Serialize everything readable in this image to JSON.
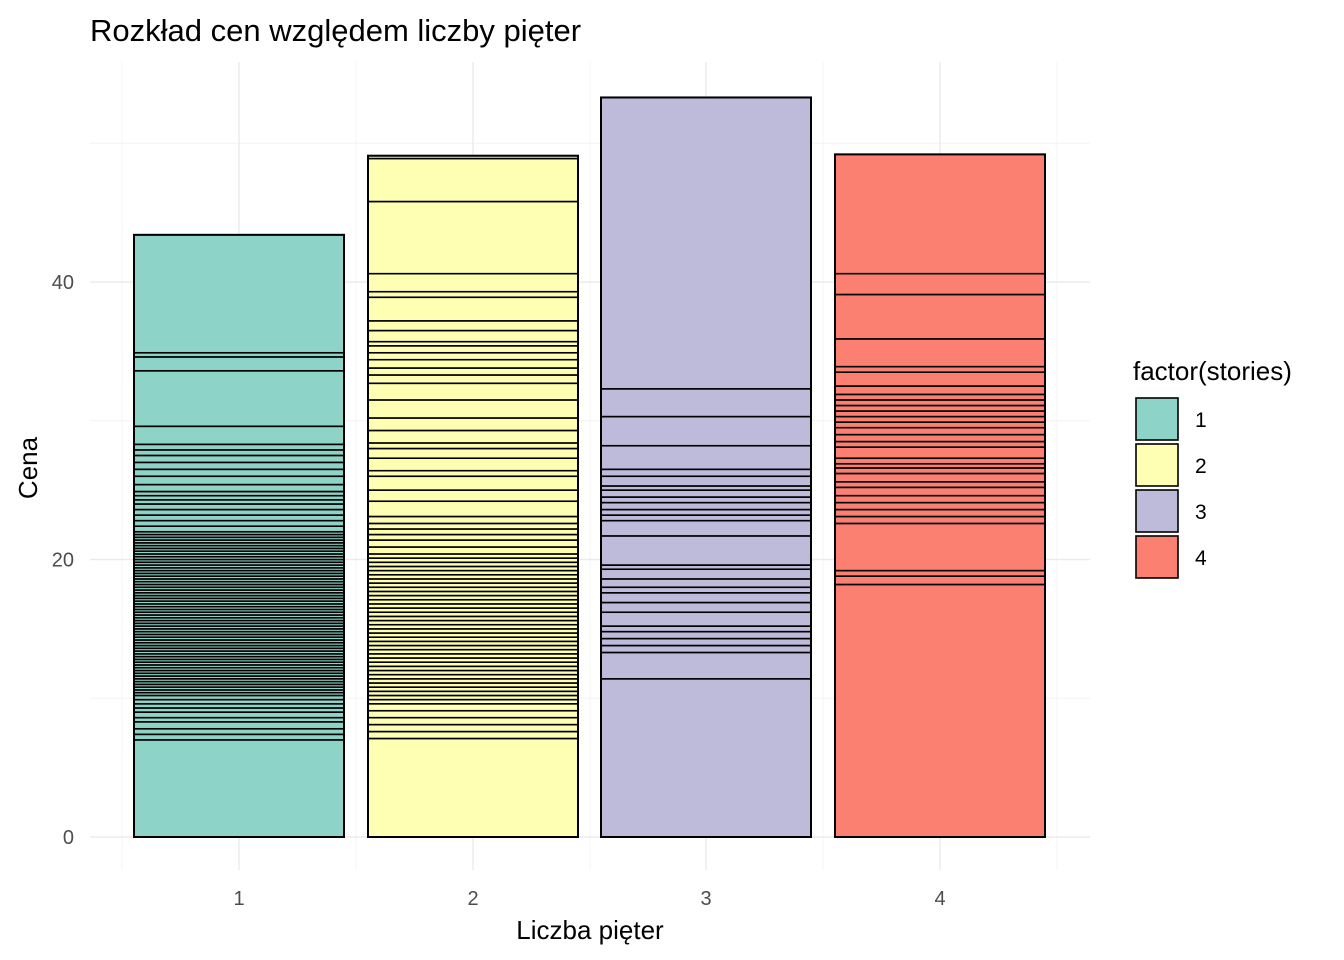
{
  "chart_data": {
    "type": "bar",
    "stacked": true,
    "title": "Rozkład cen względem liczby pięter",
    "xlabel": "Liczba pięter",
    "ylabel": "Cena",
    "categories": [
      "1",
      "2",
      "3",
      "4"
    ],
    "ylim": [
      0,
      55
    ],
    "yticks": [
      0,
      20,
      40
    ],
    "grid": true,
    "legend": {
      "title": "factor(stories)",
      "position": "right",
      "entries": [
        {
          "label": "1",
          "color": "#8ED3C7"
        },
        {
          "label": "2",
          "color": "#FFFFB3"
        },
        {
          "label": "3",
          "color": "#BEBADA"
        },
        {
          "label": "4",
          "color": "#FB8072"
        }
      ]
    },
    "series": [
      {
        "category": "1",
        "color": "#8ED3C7",
        "total": 43.4,
        "segment_boundaries": [
          7.0,
          7.4,
          7.8,
          8.3,
          8.6,
          9.0,
          9.3,
          9.6,
          9.9,
          10.2,
          10.4,
          10.6,
          10.8,
          11.0,
          11.2,
          11.4,
          11.6,
          11.8,
          12.0,
          12.2,
          12.4,
          12.6,
          12.8,
          13.0,
          13.2,
          13.4,
          13.6,
          13.8,
          14.0,
          14.2,
          14.4,
          14.6,
          14.8,
          15.0,
          15.2,
          15.4,
          15.6,
          15.8,
          16.0,
          16.2,
          16.4,
          16.6,
          16.8,
          17.0,
          17.2,
          17.4,
          17.6,
          17.8,
          18.0,
          18.2,
          18.4,
          18.6,
          18.8,
          19.0,
          19.2,
          19.4,
          19.6,
          19.8,
          20.0,
          20.2,
          20.4,
          20.6,
          20.8,
          21.0,
          21.2,
          21.4,
          21.6,
          21.8,
          22.0,
          22.4,
          22.8,
          23.2,
          23.6,
          24.0,
          24.3,
          24.6,
          24.9,
          25.4,
          26.0,
          26.5,
          27.0,
          27.5,
          27.9,
          28.3,
          29.6,
          33.6,
          34.6,
          34.9,
          43.4
        ]
      },
      {
        "category": "2",
        "color": "#FFFFB3",
        "total": 49.1,
        "segment_boundaries": [
          7.1,
          7.6,
          8.1,
          8.6,
          9.1,
          9.6,
          9.9,
          10.2,
          10.5,
          10.8,
          11.1,
          11.4,
          11.7,
          12.0,
          12.3,
          12.6,
          12.9,
          13.2,
          13.5,
          13.8,
          14.1,
          14.4,
          14.7,
          15.0,
          15.3,
          15.6,
          15.9,
          16.2,
          16.5,
          16.8,
          17.1,
          17.4,
          17.7,
          18.0,
          18.3,
          18.6,
          18.9,
          19.2,
          19.5,
          19.8,
          20.1,
          20.4,
          20.9,
          21.4,
          21.8,
          22.2,
          22.6,
          23.1,
          24.2,
          25.0,
          26.0,
          26.4,
          27.3,
          28.0,
          28.4,
          29.3,
          30.2,
          31.5,
          32.7,
          33.3,
          33.8,
          34.4,
          34.9,
          35.4,
          35.7,
          36.5,
          37.2,
          38.9,
          39.3,
          40.6,
          45.8,
          48.9,
          49.1
        ]
      },
      {
        "category": "3",
        "color": "#BEBADA",
        "total": 53.3,
        "segment_boundaries": [
          11.4,
          13.3,
          13.8,
          14.3,
          14.8,
          15.2,
          16.2,
          16.9,
          17.6,
          18.0,
          18.6,
          19.3,
          19.6,
          21.7,
          22.8,
          23.2,
          23.6,
          24.1,
          24.5,
          25.0,
          25.3,
          26.0,
          26.5,
          28.2,
          30.3,
          32.3,
          53.3
        ]
      },
      {
        "category": "4",
        "color": "#FB8072",
        "total": 49.2,
        "segment_boundaries": [
          18.2,
          18.8,
          19.2,
          22.6,
          23.1,
          23.6,
          24.1,
          24.6,
          25.2,
          25.6,
          26.2,
          26.6,
          26.9,
          27.3,
          28.1,
          28.5,
          29.0,
          29.5,
          29.9,
          30.3,
          30.7,
          31.1,
          31.5,
          31.9,
          32.5,
          33.5,
          33.9,
          35.9,
          39.1,
          40.6,
          49.2
        ]
      }
    ]
  }
}
